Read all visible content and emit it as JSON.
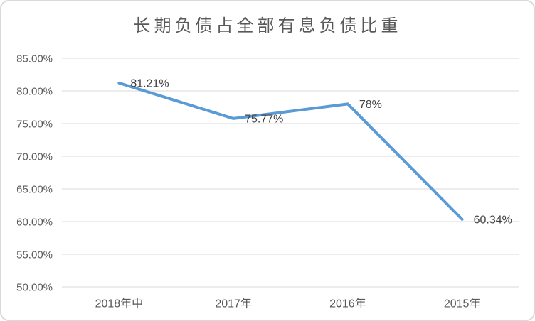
{
  "chart_data": {
    "type": "line",
    "title": "长期负债占全部有息负债比重",
    "categories": [
      "2018年中",
      "2017年",
      "2016年",
      "2015年"
    ],
    "values": [
      81.21,
      75.77,
      78,
      60.34
    ],
    "data_labels": [
      "81.21%",
      "75.77%",
      "78%",
      "60.34%"
    ],
    "ylim": [
      50,
      85
    ],
    "ytick_values": [
      50,
      55,
      60,
      65,
      70,
      75,
      80,
      85
    ],
    "ytick_labels": [
      "50.00%",
      "55.00%",
      "60.00%",
      "65.00%",
      "70.00%",
      "75.00%",
      "80.00%",
      "85.00%"
    ],
    "grid": true,
    "legend": "none",
    "colors": {
      "line": "#5b9bd5",
      "gridline": "#d9d9d9",
      "axis_text": "#595959",
      "data_label_text": "#404040",
      "title_text": "#595959",
      "frame_border": "#d9d9d9",
      "background": "#ffffff"
    }
  }
}
